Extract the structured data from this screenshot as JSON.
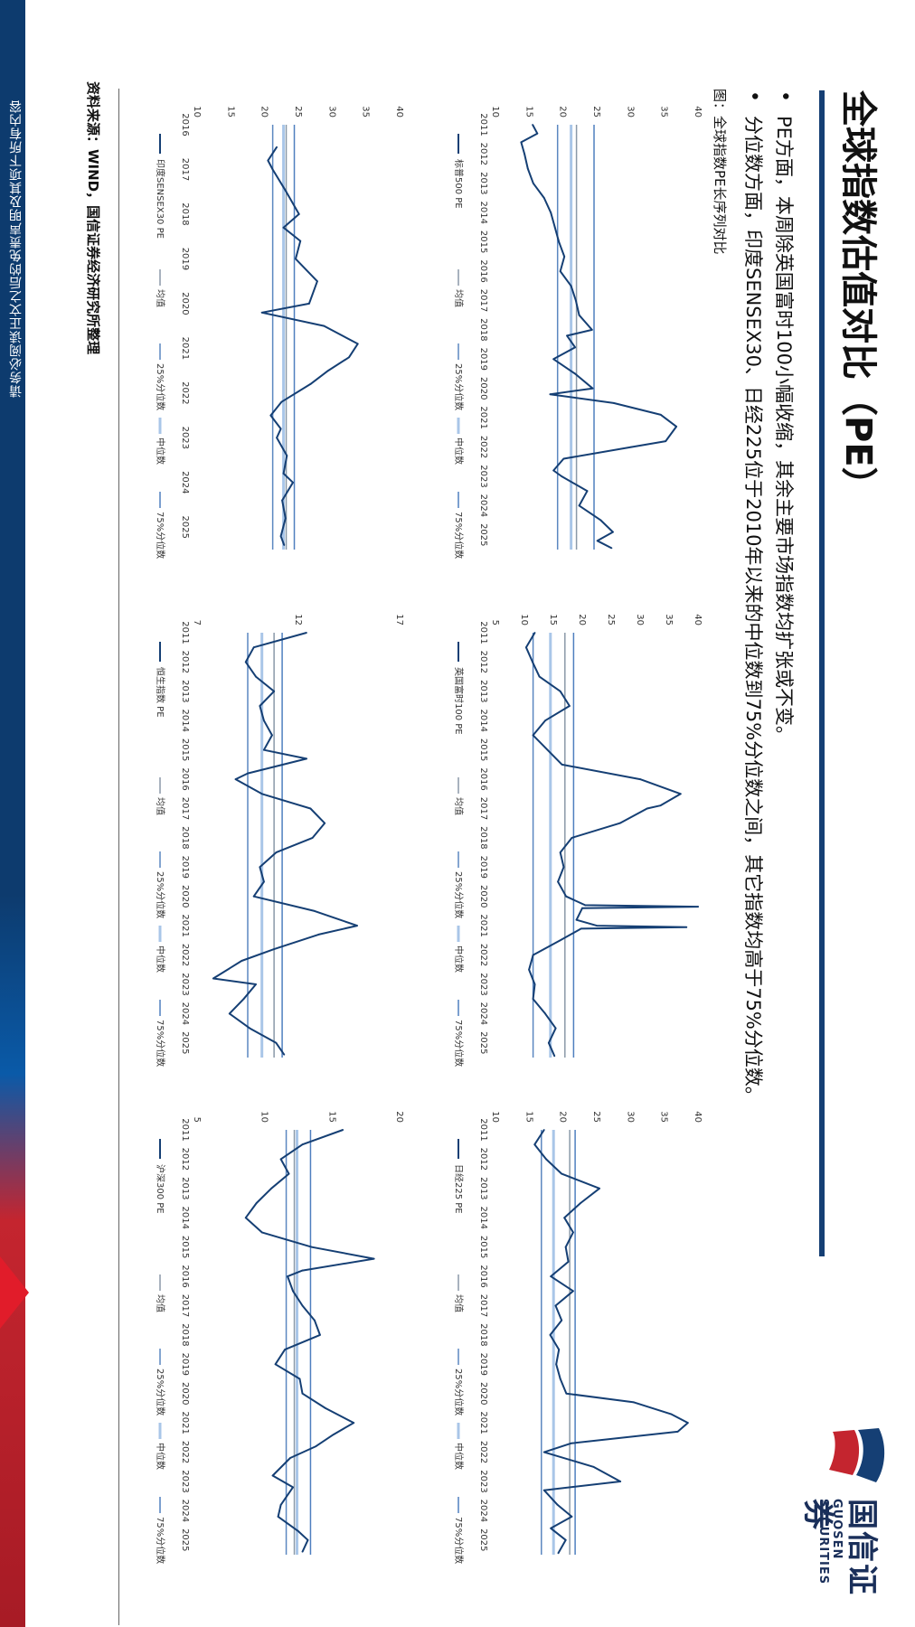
{
  "page": {
    "title": "全球指数估值对比（PE）",
    "disclaimer": "请务必阅读正文之后的免责声明及其项下所有内容",
    "figure_caption": "图：全球指数PE长序列对比",
    "source": "资料来源：WIND，国信证券经济研究所整理",
    "bullets": [
      "PE方面，本周除英国富时100小幅收缩，其余主要市场指数均扩张或不变。",
      "分位数方面，印度SENSEX30、日经225位于2010年以来的中位数到75%分位数之间，其它指数均高于75%分位数。"
    ]
  },
  "logo": {
    "cn": "国信证券",
    "en": "GUOSEN SECURITIES"
  },
  "colors": {
    "series": "#153f74",
    "mean": "#8a99a8",
    "p25": "#5b87c0",
    "median": "#a9c6e8",
    "p75": "#4f7fbf",
    "brand_blue": "#153f74",
    "brand_red": "#c4252f"
  },
  "legend_labels": {
    "mean": "均值",
    "p25": "25%分位数",
    "median": "中位数",
    "p75": "75%分位数"
  },
  "chart_data": [
    {
      "type": "line",
      "series_name": "标普500 PE",
      "ylim": [
        10,
        40
      ],
      "yticks": [
        "10",
        "15",
        "20",
        "25",
        "30",
        "35",
        "40"
      ],
      "xticks": [
        "2011",
        "2012",
        "2013",
        "2014",
        "2015",
        "2016",
        "2017",
        "2018",
        "2019",
        "2020",
        "2021",
        "2022",
        "2023",
        "2024",
        "2025"
      ],
      "xrange": [
        2011,
        2025.5
      ],
      "ref": {
        "mean": 22.0,
        "p25": 19.2,
        "median": 21.2,
        "p75": 24.6
      },
      "points": [
        [
          2011.0,
          15.5
        ],
        [
          2011.3,
          16.2
        ],
        [
          2011.6,
          13.8
        ],
        [
          2012.0,
          14.3
        ],
        [
          2012.5,
          14.8
        ],
        [
          2013.0,
          15.6
        ],
        [
          2013.5,
          17.2
        ],
        [
          2014.0,
          18.2
        ],
        [
          2014.5,
          18.8
        ],
        [
          2015.0,
          19.4
        ],
        [
          2015.5,
          20.2
        ],
        [
          2016.0,
          19.6
        ],
        [
          2016.5,
          21.2
        ],
        [
          2017.0,
          21.9
        ],
        [
          2017.5,
          22.4
        ],
        [
          2018.0,
          24.3
        ],
        [
          2018.2,
          20.6
        ],
        [
          2018.6,
          21.8
        ],
        [
          2019.0,
          18.6
        ],
        [
          2019.5,
          21.8
        ],
        [
          2020.0,
          24.4
        ],
        [
          2020.2,
          18.1
        ],
        [
          2020.5,
          27.5
        ],
        [
          2020.9,
          34.5
        ],
        [
          2021.3,
          36.8
        ],
        [
          2021.8,
          35.2
        ],
        [
          2022.0,
          30.1
        ],
        [
          2022.4,
          20.1
        ],
        [
          2022.8,
          18.6
        ],
        [
          2023.0,
          19.8
        ],
        [
          2023.5,
          23.6
        ],
        [
          2024.0,
          22.4
        ],
        [
          2024.5,
          25.6
        ],
        [
          2024.9,
          27.4
        ],
        [
          2025.2,
          25.1
        ],
        [
          2025.45,
          27.2
        ]
      ]
    },
    {
      "type": "line",
      "series_name": "英国富时100 PE",
      "ylim": [
        5,
        40
      ],
      "yticks": [
        "5",
        "10",
        "15",
        "20",
        "25",
        "30",
        "35",
        "40"
      ],
      "xticks": [
        "2011",
        "2012",
        "2013",
        "2014",
        "2015",
        "2016",
        "2017",
        "2018",
        "2019",
        "2020",
        "2021",
        "2022",
        "2023",
        "2024",
        "2025"
      ],
      "xrange": [
        2011,
        2025.5
      ],
      "ref": {
        "mean": 17.0,
        "p25": 11.5,
        "median": 14.5,
        "p75": 18.5
      },
      "points": [
        [
          2011.0,
          11.8
        ],
        [
          2011.5,
          10.3
        ],
        [
          2012.0,
          11.4
        ],
        [
          2012.5,
          12.6
        ],
        [
          2013.0,
          16.2
        ],
        [
          2013.5,
          17.8
        ],
        [
          2014.0,
          13.6
        ],
        [
          2014.5,
          11.5
        ],
        [
          2015.0,
          14.0
        ],
        [
          2015.5,
          16.5
        ],
        [
          2016.0,
          30.0
        ],
        [
          2016.5,
          37.0
        ],
        [
          2016.9,
          33.5
        ],
        [
          2017.0,
          31.2
        ],
        [
          2017.5,
          26.5
        ],
        [
          2018.0,
          18.2
        ],
        [
          2018.5,
          16.2
        ],
        [
          2019.0,
          16.8
        ],
        [
          2019.5,
          15.8
        ],
        [
          2020.0,
          17.2
        ],
        [
          2020.3,
          20.5
        ],
        [
          2020.35,
          40.0
        ],
        [
          2020.4,
          20.0
        ],
        [
          2020.8,
          19.0
        ],
        [
          2021.0,
          22.5
        ],
        [
          2021.05,
          38.0
        ],
        [
          2021.1,
          19.8
        ],
        [
          2021.5,
          16.2
        ],
        [
          2022.0,
          11.5
        ],
        [
          2022.5,
          10.8
        ],
        [
          2023.0,
          11.8
        ],
        [
          2023.5,
          11.5
        ],
        [
          2024.0,
          13.6
        ],
        [
          2024.5,
          15.4
        ],
        [
          2025.0,
          14.2
        ],
        [
          2025.45,
          15.2
        ]
      ]
    },
    {
      "type": "line",
      "series_name": "日经225 PE",
      "ylim": [
        10,
        40
      ],
      "yticks": [
        "10",
        "15",
        "20",
        "25",
        "30",
        "35",
        "40"
      ],
      "xticks": [
        "2011",
        "2012",
        "2013",
        "2014",
        "2015",
        "2016",
        "2017",
        "2018",
        "2019",
        "2020",
        "2021",
        "2022",
        "2023",
        "2024",
        "2025"
      ],
      "xrange": [
        2011,
        2025.5
      ],
      "ref": {
        "mean": 21.0,
        "p25": 16.8,
        "median": 18.6,
        "p75": 21.8
      },
      "points": [
        [
          2011.0,
          17.2
        ],
        [
          2011.5,
          15.8
        ],
        [
          2012.0,
          17.5
        ],
        [
          2012.5,
          19.8
        ],
        [
          2013.0,
          25.4
        ],
        [
          2013.5,
          22.6
        ],
        [
          2014.0,
          20.2
        ],
        [
          2014.5,
          21.5
        ],
        [
          2015.0,
          20.4
        ],
        [
          2015.5,
          20.8
        ],
        [
          2016.0,
          18.2
        ],
        [
          2016.5,
          21.5
        ],
        [
          2017.0,
          18.9
        ],
        [
          2017.5,
          19.8
        ],
        [
          2018.0,
          18.1
        ],
        [
          2018.5,
          19.4
        ],
        [
          2019.0,
          19.0
        ],
        [
          2019.5,
          19.6
        ],
        [
          2020.0,
          20.5
        ],
        [
          2020.3,
          30.5
        ],
        [
          2020.7,
          36.0
        ],
        [
          2021.0,
          38.5
        ],
        [
          2021.3,
          37.0
        ],
        [
          2021.7,
          21.2
        ],
        [
          2022.0,
          17.2
        ],
        [
          2022.5,
          24.5
        ],
        [
          2023.0,
          28.5
        ],
        [
          2023.3,
          17.2
        ],
        [
          2023.8,
          19.2
        ],
        [
          2024.2,
          21.3
        ],
        [
          2024.6,
          18.2
        ],
        [
          2025.0,
          20.4
        ],
        [
          2025.45,
          19.3
        ]
      ]
    },
    {
      "type": "line",
      "series_name": "印度SENSEX30 PE",
      "ylim": [
        10,
        40
      ],
      "yticks": [
        "10",
        "15",
        "20",
        "25",
        "30",
        "35",
        "40"
      ],
      "xticks": [
        "2016",
        "2017",
        "2018",
        "2019",
        "2020",
        "2021",
        "2022",
        "2023",
        "2024",
        "2025"
      ],
      "xrange": [
        2016,
        2025.5
      ],
      "ref": {
        "mean": 23.2,
        "p25": 21.2,
        "median": 22.8,
        "p75": 24.4
      },
      "points": [
        [
          2016.5,
          21.8
        ],
        [
          2016.8,
          20.5
        ],
        [
          2017.0,
          21.2
        ],
        [
          2017.5,
          23.2
        ],
        [
          2018.0,
          25.1
        ],
        [
          2018.3,
          22.8
        ],
        [
          2018.6,
          25.3
        ],
        [
          2019.0,
          24.6
        ],
        [
          2019.5,
          27.8
        ],
        [
          2020.0,
          26.6
        ],
        [
          2020.2,
          19.6
        ],
        [
          2020.5,
          28.8
        ],
        [
          2020.9,
          33.8
        ],
        [
          2021.2,
          32.5
        ],
        [
          2021.5,
          29.4
        ],
        [
          2021.8,
          26.8
        ],
        [
          2022.2,
          22.5
        ],
        [
          2022.5,
          20.9
        ],
        [
          2022.8,
          22.4
        ],
        [
          2023.0,
          21.8
        ],
        [
          2023.4,
          23.3
        ],
        [
          2023.8,
          22.8
        ],
        [
          2024.0,
          24.2
        ],
        [
          2024.4,
          22.6
        ],
        [
          2024.8,
          23.1
        ],
        [
          2025.2,
          22.4
        ],
        [
          2025.4,
          22.9
        ]
      ]
    },
    {
      "type": "line",
      "series_name": "恒生指数 PE",
      "ylim": [
        7,
        17
      ],
      "yticks": [
        "7",
        "12",
        "17"
      ],
      "xticks": [
        "2011",
        "2012",
        "2013",
        "2014",
        "2015",
        "2016",
        "2017",
        "2018",
        "2019",
        "2020",
        "2021",
        "2022",
        "2023",
        "2024",
        "2025"
      ],
      "xrange": [
        2011,
        2025.5
      ],
      "ref": {
        "mean": 10.8,
        "p25": 9.5,
        "median": 10.2,
        "p75": 11.2
      },
      "points": [
        [
          2011.0,
          12.4
        ],
        [
          2011.5,
          9.8
        ],
        [
          2012.0,
          9.4
        ],
        [
          2012.5,
          9.9
        ],
        [
          2013.0,
          10.8
        ],
        [
          2013.5,
          10.1
        ],
        [
          2014.0,
          10.3
        ],
        [
          2014.5,
          10.7
        ],
        [
          2015.0,
          10.3
        ],
        [
          2015.3,
          12.4
        ],
        [
          2015.8,
          9.5
        ],
        [
          2016.0,
          8.9
        ],
        [
          2016.5,
          10.2
        ],
        [
          2017.0,
          12.6
        ],
        [
          2017.5,
          13.3
        ],
        [
          2018.0,
          12.7
        ],
        [
          2018.5,
          10.9
        ],
        [
          2019.0,
          10.1
        ],
        [
          2019.5,
          10.3
        ],
        [
          2020.0,
          9.8
        ],
        [
          2020.5,
          12.8
        ],
        [
          2021.0,
          14.9
        ],
        [
          2021.3,
          13.0
        ],
        [
          2021.8,
          10.8
        ],
        [
          2022.2,
          9.2
        ],
        [
          2022.8,
          7.8
        ],
        [
          2023.0,
          9.9
        ],
        [
          2023.5,
          9.3
        ],
        [
          2024.0,
          8.6
        ],
        [
          2024.5,
          9.6
        ],
        [
          2025.0,
          10.9
        ],
        [
          2025.4,
          11.3
        ]
      ]
    },
    {
      "type": "line",
      "series_name": "沪深300 PE",
      "ylim": [
        5,
        20
      ],
      "yticks": [
        "5",
        "10",
        "15",
        "20"
      ],
      "xticks": [
        "2011",
        "2012",
        "2013",
        "2014",
        "2015",
        "2016",
        "2017",
        "2018",
        "2019",
        "2020",
        "2021",
        "2022",
        "2023",
        "2024",
        "2025"
      ],
      "xrange": [
        2011,
        2025.5
      ],
      "ref": {
        "mean": 12.2,
        "p25": 11.6,
        "median": 12.4,
        "p75": 13.4
      },
      "points": [
        [
          2011.0,
          15.8
        ],
        [
          2011.5,
          12.8
        ],
        [
          2012.0,
          11.2
        ],
        [
          2012.5,
          11.8
        ],
        [
          2013.0,
          10.5
        ],
        [
          2013.5,
          9.4
        ],
        [
          2014.0,
          8.6
        ],
        [
          2014.5,
          9.8
        ],
        [
          2015.0,
          13.5
        ],
        [
          2015.4,
          18.1
        ],
        [
          2015.8,
          12.8
        ],
        [
          2016.0,
          11.7
        ],
        [
          2016.5,
          12.1
        ],
        [
          2017.0,
          12.8
        ],
        [
          2017.5,
          13.7
        ],
        [
          2018.0,
          14.1
        ],
        [
          2018.5,
          11.5
        ],
        [
          2019.0,
          10.8
        ],
        [
          2019.5,
          12.6
        ],
        [
          2020.0,
          12.8
        ],
        [
          2020.5,
          14.5
        ],
        [
          2021.0,
          16.6
        ],
        [
          2021.4,
          15.1
        ],
        [
          2021.8,
          13.8
        ],
        [
          2022.2,
          11.9
        ],
        [
          2022.8,
          10.6
        ],
        [
          2023.2,
          12.1
        ],
        [
          2023.8,
          11.2
        ],
        [
          2024.2,
          11.0
        ],
        [
          2024.7,
          12.5
        ],
        [
          2025.0,
          13.2
        ],
        [
          2025.4,
          12.8
        ]
      ]
    }
  ]
}
